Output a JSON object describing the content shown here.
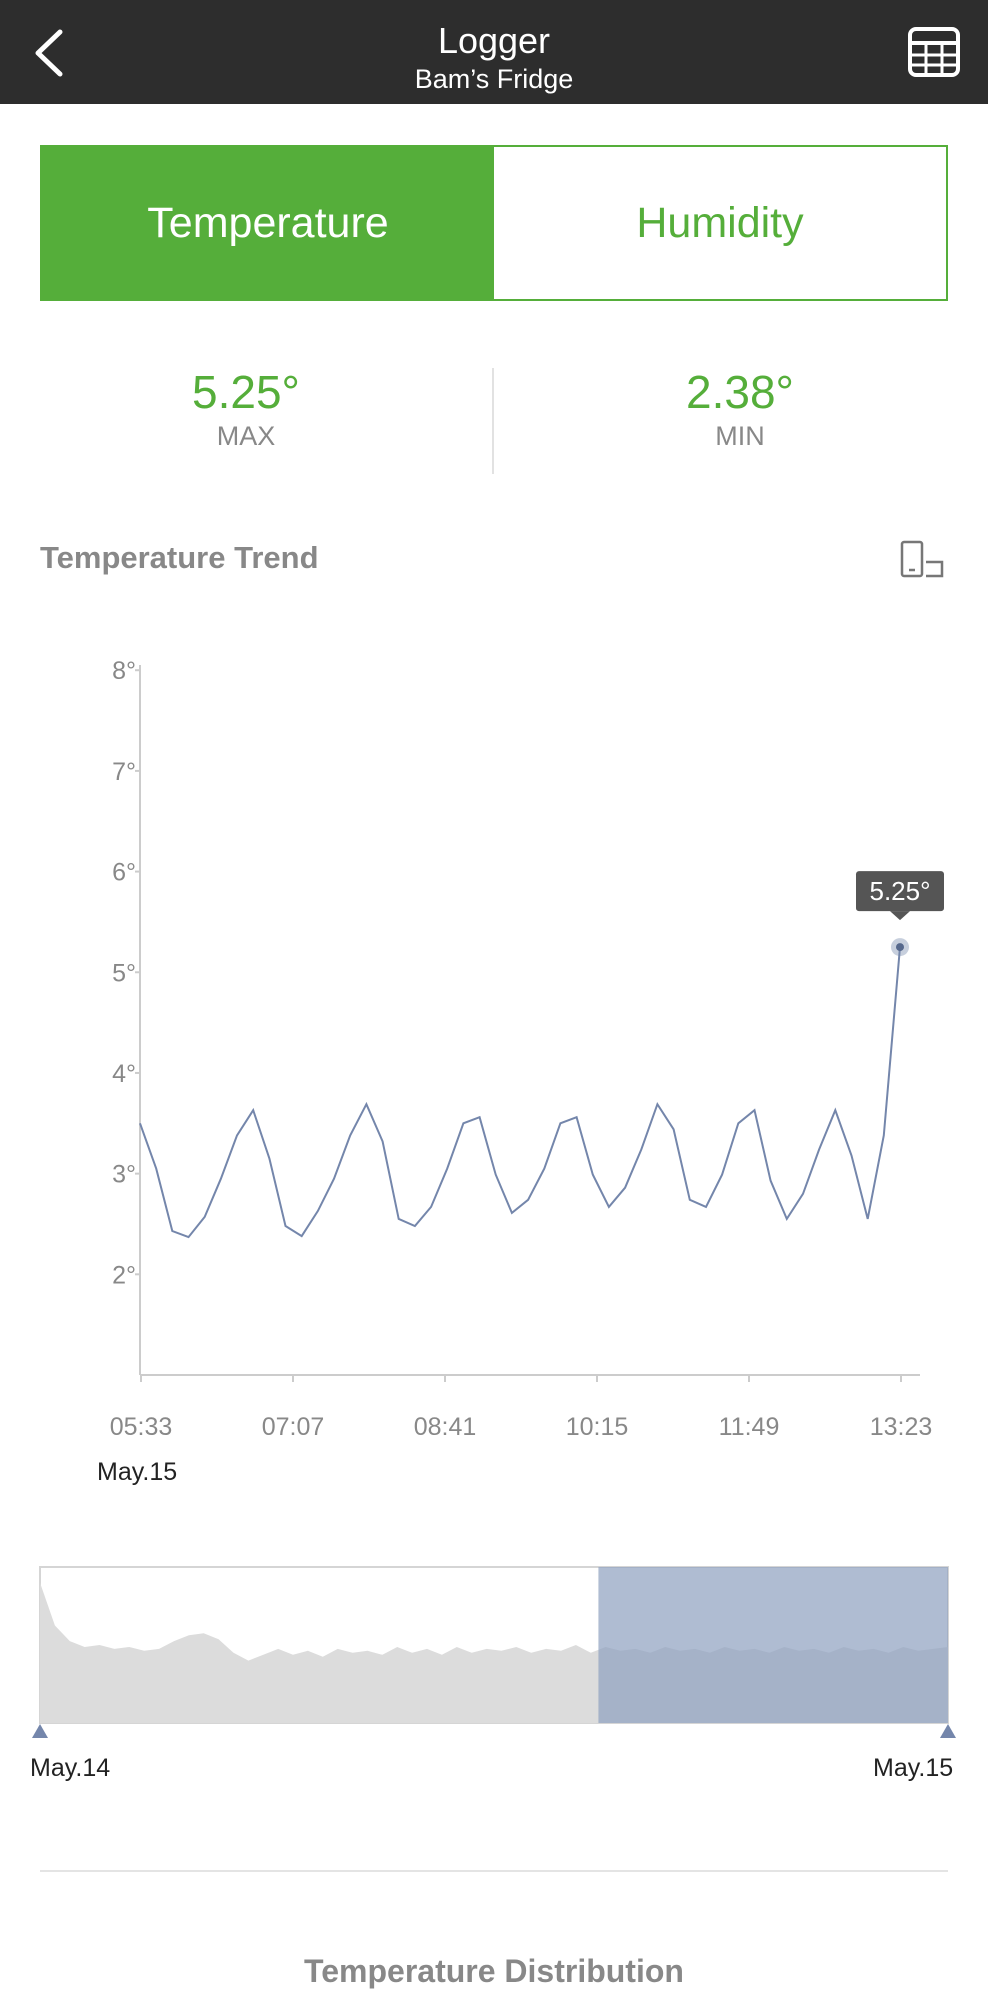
{
  "header": {
    "title": "Logger",
    "subtitle": "Bam’s Fridge",
    "back_icon": "chevron-left-icon",
    "table_icon": "table-grid-icon"
  },
  "tabs": [
    {
      "label": "Temperature",
      "active": true
    },
    {
      "label": "Humidity",
      "active": false
    }
  ],
  "stats": {
    "max_value": "5.25°",
    "max_label": "MAX",
    "min_value": "2.38°",
    "min_label": "MIN"
  },
  "trend": {
    "title": "Temperature Trend",
    "rotate_icon": "rotate-screen-icon"
  },
  "chart_data": {
    "type": "line",
    "x_ticks": [
      "05:33",
      "07:07",
      "08:41",
      "10:15",
      "11:49",
      "13:23"
    ],
    "x_date_label": "May.15",
    "y_ticks": [
      "2°",
      "3°",
      "4°",
      "5°",
      "6°",
      "7°",
      "8°"
    ],
    "ylim": [
      1.0,
      8.3
    ],
    "xlim": [
      0,
      47
    ],
    "series": [
      {
        "values": [
          3.5,
          3.05,
          2.43,
          2.37,
          2.57,
          2.95,
          3.38,
          3.63,
          3.15,
          2.48,
          2.38,
          2.63,
          2.95,
          3.38,
          3.69,
          3.32,
          2.55,
          2.48,
          2.67,
          3.05,
          3.5,
          3.56,
          2.99,
          2.61,
          2.74,
          3.05,
          3.5,
          3.56,
          2.99,
          2.67,
          2.86,
          3.24,
          3.69,
          3.44,
          2.74,
          2.67,
          2.99,
          3.5,
          3.63,
          2.93,
          2.55,
          2.8,
          3.24,
          3.63,
          3.18,
          2.55,
          3.38,
          5.25
        ]
      }
    ],
    "tooltip": "5.25°",
    "line_color": "#7486ab"
  },
  "navigator": {
    "start_label": "May.14",
    "end_label": "May.15",
    "overview_values": [
      7.2,
      5.0,
      4.2,
      3.9,
      4.0,
      3.8,
      3.9,
      3.7,
      3.8,
      4.2,
      4.5,
      4.6,
      4.3,
      3.6,
      3.2,
      3.5,
      3.8,
      3.5,
      3.7,
      3.4,
      3.8,
      3.6,
      3.7,
      3.5,
      3.9,
      3.6,
      3.8,
      3.5,
      3.9,
      3.6,
      3.8,
      3.7,
      3.9,
      3.6,
      3.8,
      3.7,
      4.0,
      3.6,
      3.9,
      3.7,
      3.8,
      3.6,
      3.9,
      3.7,
      3.8,
      3.6,
      3.9,
      3.7,
      3.8,
      3.6,
      3.9,
      3.7,
      3.8,
      3.6,
      3.9,
      3.7,
      3.8,
      3.6,
      3.9,
      3.7,
      3.8,
      3.9
    ],
    "selection_start_fraction": 0.615,
    "selection_end_fraction": 1.0,
    "fill_color": "#dcdcdc",
    "selection_color": "#8d9fbf"
  },
  "distribution": {
    "title": "Temperature Distribution"
  },
  "colors": {
    "accent": "#55ae3a",
    "header_bg": "#2d2d2d"
  }
}
